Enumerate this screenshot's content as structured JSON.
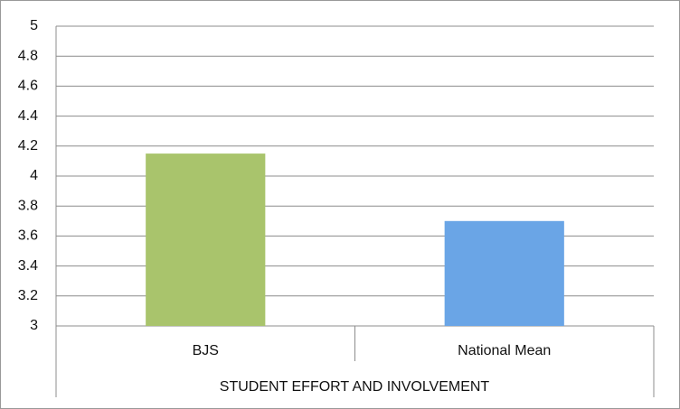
{
  "chart_data": {
    "type": "bar",
    "xlabel": "STUDENT EFFORT AND INVOLVEMENT",
    "categories": [
      "BJS",
      "National Mean"
    ],
    "values": [
      4.15,
      3.7
    ],
    "colors": [
      "#a9c46c",
      "#6aa5e6"
    ],
    "ylim": [
      3,
      5
    ],
    "yticks": [
      3,
      3.2,
      3.4,
      3.6,
      3.8,
      4,
      4.2,
      4.4,
      4.6,
      4.8,
      5
    ],
    "grid": true
  }
}
